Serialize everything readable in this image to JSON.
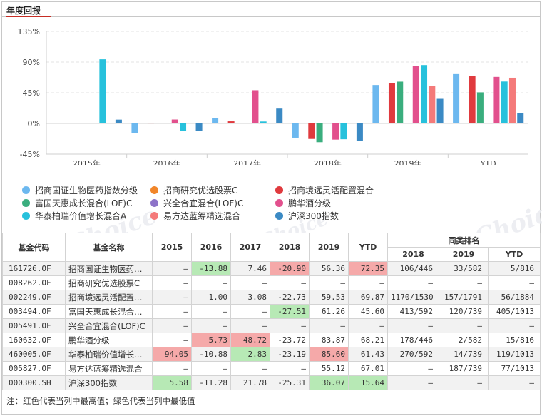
{
  "section_title": "年度回报",
  "watermark": "Choice",
  "chart_data": {
    "type": "bar",
    "categories": [
      "2015年",
      "2016年",
      "2017年",
      "2018年",
      "2019年",
      "YTD"
    ],
    "y_ticks": [
      "135%",
      "90%",
      "45%",
      "0%",
      "-45%"
    ],
    "ylim": [
      -45,
      135
    ],
    "grid": true,
    "legend_position": "bottom",
    "series": [
      {
        "name": "招商国证生物医药指数分级",
        "color": "#6cb8ef",
        "values": [
          null,
          -13.88,
          7.46,
          -20.9,
          56.36,
          72.35
        ]
      },
      {
        "name": "招商研究优选股票C",
        "color": "#f1862a",
        "values": [
          null,
          null,
          null,
          null,
          null,
          null
        ]
      },
      {
        "name": "招商境远灵活配置混合",
        "color": "#e03a3e",
        "values": [
          null,
          1.0,
          3.08,
          -22.73,
          59.53,
          69.87
        ]
      },
      {
        "name": "富国天惠成长混合(LOF)C",
        "color": "#3aae7e",
        "values": [
          null,
          null,
          null,
          -27.51,
          61.26,
          45.6
        ]
      },
      {
        "name": "兴全合宜混合(LOF)C",
        "color": "#8d73c8",
        "values": [
          null,
          null,
          null,
          null,
          null,
          null
        ]
      },
      {
        "name": "鹏华酒分级",
        "color": "#e2508d",
        "values": [
          null,
          5.73,
          48.72,
          -23.72,
          83.87,
          68.21
        ]
      },
      {
        "name": "华泰柏瑞价值增长混合A",
        "color": "#27c1dc",
        "values": [
          94.05,
          -10.88,
          2.83,
          -23.19,
          85.6,
          61.43
        ]
      },
      {
        "name": "易方达蓝筹精选混合",
        "color": "#f47a7a",
        "values": [
          null,
          null,
          null,
          null,
          55.12,
          67.01
        ]
      },
      {
        "name": "沪深300指数",
        "color": "#3b8ac4",
        "values": [
          5.58,
          -11.28,
          21.78,
          -25.31,
          36.07,
          15.64
        ]
      }
    ]
  },
  "table": {
    "headers": {
      "code": "基金代码",
      "name": "基金名称",
      "years": [
        "2015",
        "2016",
        "2017",
        "2018",
        "2019",
        "YTD"
      ],
      "rank_group": "同类排名",
      "rank_years": [
        "2018",
        "2019",
        "YTD"
      ]
    },
    "rows": [
      {
        "code": "161726.OF",
        "name": "招商国证生物医药…",
        "vals": [
          "–",
          "-13.88",
          "7.46",
          "-20.90",
          "56.36",
          "72.35"
        ],
        "ranks": [
          "106/446",
          "33/582",
          "5/816"
        ]
      },
      {
        "code": "008262.OF",
        "name": "招商研究优选股票C",
        "vals": [
          "–",
          "–",
          "–",
          "–",
          "–",
          "–"
        ],
        "ranks": [
          "–",
          "–",
          "–"
        ]
      },
      {
        "code": "002249.OF",
        "name": "招商境远灵活配置…",
        "vals": [
          "–",
          "1.00",
          "3.08",
          "-22.73",
          "59.53",
          "69.87"
        ],
        "ranks": [
          "1170/1530",
          "157/1791",
          "56/1884"
        ]
      },
      {
        "code": "003494.OF",
        "name": "富国天惠成长混合…",
        "vals": [
          "–",
          "–",
          "–",
          "-27.51",
          "61.26",
          "45.60"
        ],
        "ranks": [
          "413/592",
          "120/739",
          "405/1013"
        ]
      },
      {
        "code": "005491.OF",
        "name": "兴全合宜混合(LOF)C",
        "vals": [
          "–",
          "–",
          "–",
          "–",
          "–",
          "–"
        ],
        "ranks": [
          "–",
          "–",
          "–"
        ]
      },
      {
        "code": "160632.OF",
        "name": "鹏华酒分级",
        "vals": [
          "–",
          "5.73",
          "48.72",
          "-23.72",
          "83.87",
          "68.21"
        ],
        "ranks": [
          "178/446",
          "2/582",
          "15/816"
        ]
      },
      {
        "code": "460005.OF",
        "name": "华泰柏瑞价值增长…",
        "vals": [
          "94.05",
          "-10.88",
          "2.83",
          "-23.19",
          "85.60",
          "61.43"
        ],
        "ranks": [
          "270/592",
          "14/739",
          "119/1013"
        ]
      },
      {
        "code": "005827.OF",
        "name": "易方达蓝筹精选混合",
        "vals": [
          "–",
          "–",
          "–",
          "–",
          "55.12",
          "67.01"
        ],
        "ranks": [
          "–",
          "187/739",
          "77/1013"
        ]
      },
      {
        "code": "000300.SH",
        "name": "沪深300指数",
        "vals": [
          "5.58",
          "-11.28",
          "21.78",
          "-25.31",
          "36.07",
          "15.64"
        ],
        "ranks": [
          "–",
          "–",
          "–"
        ]
      }
    ],
    "highlights": {
      "max": [
        [
          6,
          0
        ],
        [
          5,
          1
        ],
        [
          5,
          2
        ],
        [
          0,
          3
        ],
        [
          6,
          4
        ],
        [
          0,
          5
        ]
      ],
      "min": [
        [
          8,
          0
        ],
        [
          0,
          1
        ],
        [
          6,
          2
        ],
        [
          3,
          3
        ],
        [
          8,
          4
        ],
        [
          8,
          5
        ]
      ]
    },
    "colors": {
      "max": "#f5a9a9",
      "min": "#b7e9b5"
    }
  },
  "note": "注：红色代表当列中最高值；绿色代表当列中最低值"
}
